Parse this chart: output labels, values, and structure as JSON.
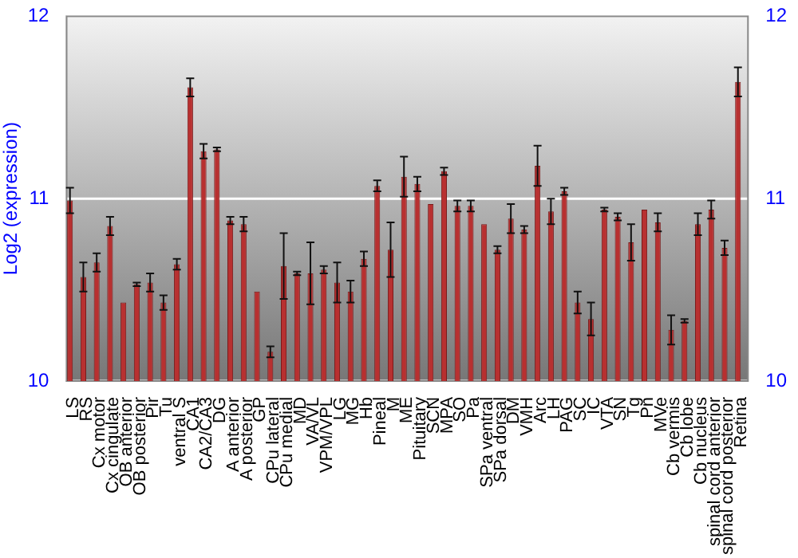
{
  "chart_data": {
    "type": "bar",
    "ylabel": "Log2 (expression)",
    "categories": [
      "LS",
      "RS",
      "Cx motor",
      "Cx cingulate",
      "OB anterior",
      "OB posterior",
      "Pir",
      "Tu",
      "ventral S",
      "CA1",
      "CA2/CA3",
      "DG",
      "A anterior",
      "A posterior",
      "GP",
      "CPu lateral",
      "CPu medial",
      "MD",
      "VA/VL",
      "VPM/VPL",
      "LG",
      "MG",
      "Hb",
      "Pineal",
      "M",
      "ME",
      "Pituitary",
      "SCN",
      "MPA",
      "SO",
      "Pa",
      "SPa ventral",
      "SPa dorsal",
      "DM",
      "VMH",
      "Arc",
      "LH",
      "PAG",
      "SC",
      "IC",
      "VTA",
      "SN",
      "Tg",
      "Pn",
      "MVe",
      "Cb vermis",
      "Cb lobe",
      "Cb nucleus",
      "spinal cord anterior",
      "spinal cord posterior",
      "Retina"
    ],
    "values": [
      10.99,
      10.57,
      10.65,
      10.85,
      10.43,
      10.53,
      10.54,
      10.43,
      10.64,
      11.61,
      11.26,
      11.27,
      10.88,
      10.86,
      10.49,
      10.16,
      10.63,
      10.59,
      10.59,
      10.61,
      10.54,
      10.49,
      10.67,
      11.07,
      10.72,
      11.12,
      11.08,
      10.97,
      11.15,
      10.96,
      10.96,
      10.86,
      10.72,
      10.89,
      10.83,
      11.18,
      10.93,
      11.04,
      10.43,
      10.34,
      10.94,
      10.9,
      10.76,
      10.94,
      10.87,
      10.28,
      10.33,
      10.86,
      10.94,
      10.73,
      11.64
    ],
    "errors": [
      0.07,
      0.08,
      0.05,
      0.05,
      null,
      0.01,
      0.05,
      0.04,
      0.03,
      0.05,
      0.04,
      0.01,
      0.02,
      0.04,
      null,
      0.03,
      0.18,
      0.01,
      0.17,
      0.02,
      0.11,
      0.06,
      0.04,
      0.03,
      0.15,
      0.11,
      0.04,
      null,
      0.02,
      0.03,
      0.03,
      null,
      0.02,
      0.08,
      0.02,
      0.11,
      0.07,
      0.02,
      0.06,
      0.09,
      0.01,
      0.02,
      0.1,
      null,
      0.05,
      0.08,
      0.01,
      0.06,
      0.05,
      0.04,
      0.08
    ],
    "color": "#b83030",
    "ylim": [
      10,
      12
    ],
    "yticks": [
      10,
      11,
      12
    ],
    "y2lim": [
      10,
      12
    ],
    "y2ticks": [
      10,
      11,
      12
    ],
    "grid": "y"
  }
}
